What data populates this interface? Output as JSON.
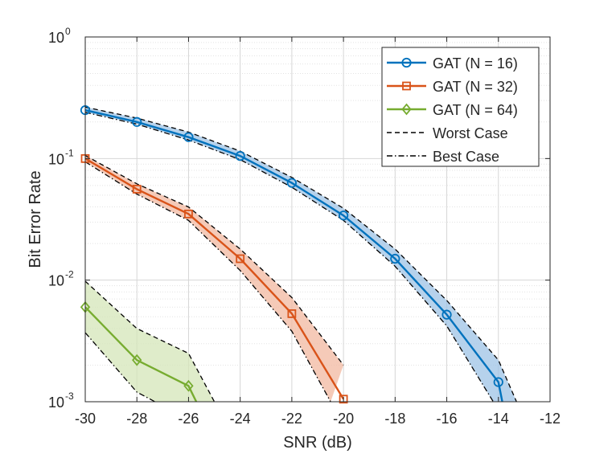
{
  "chart_data": {
    "type": "line",
    "xlabel": "SNR (dB)",
    "ylabel": "Bit Error Rate",
    "xlim": [
      -30,
      -12
    ],
    "ylim": [
      0.001,
      1
    ],
    "yscale": "log",
    "grid": true,
    "legend_position": "top-right",
    "x_ticks": [
      "-30",
      "-28",
      "-26",
      "-24",
      "-22",
      "-20",
      "-18",
      "-16",
      "-14",
      "-12"
    ],
    "y_ticks": [
      {
        "base": "10",
        "exp": "-3"
      },
      {
        "base": "10",
        "exp": "-2"
      },
      {
        "base": "10",
        "exp": "-1"
      },
      {
        "base": "10",
        "exp": "0"
      }
    ],
    "series": [
      {
        "name": "GAT (N = 16)",
        "color": "#0072BD",
        "fill": "#9DC3E6",
        "marker": "circle",
        "x": [
          -30,
          -28,
          -26,
          -24,
          -22,
          -20,
          -18,
          -16,
          -14,
          -13.85
        ],
        "y": [
          0.25,
          0.2,
          0.15,
          0.105,
          0.063,
          0.034,
          0.015,
          0.0052,
          0.00145,
          0.001
        ],
        "worst": {
          "x": [
            -30,
            -28,
            -26,
            -24,
            -22,
            -20,
            -18,
            -16,
            -14,
            -13.3
          ],
          "y": [
            0.265,
            0.215,
            0.165,
            0.115,
            0.07,
            0.039,
            0.018,
            0.0068,
            0.0022,
            0.001
          ]
        },
        "best": {
          "x": [
            -30,
            -28,
            -26,
            -24,
            -22,
            -20,
            -18,
            -16,
            -14.2
          ],
          "y": [
            0.24,
            0.192,
            0.142,
            0.098,
            0.058,
            0.031,
            0.013,
            0.0042,
            0.001
          ]
        }
      },
      {
        "name": "GAT (N = 32)",
        "color": "#D95319",
        "fill": "#F2B8A0",
        "marker": "square",
        "x": [
          -30,
          -28,
          -26,
          -24,
          -22,
          -20
        ],
        "y": [
          0.1,
          0.056,
          0.035,
          0.015,
          0.0053,
          0.00105
        ],
        "worst": {
          "x": [
            -30,
            -28,
            -26,
            -24,
            -22,
            -20
          ],
          "y": [
            0.106,
            0.062,
            0.04,
            0.018,
            0.0072,
            0.002
          ]
        },
        "best": {
          "x": [
            -30,
            -28,
            -26,
            -24,
            -22,
            -20.5
          ],
          "y": [
            0.094,
            0.051,
            0.031,
            0.012,
            0.0038,
            0.001
          ]
        }
      },
      {
        "name": "GAT (N = 64)",
        "color": "#77AC30",
        "fill": "#D4E6B8",
        "marker": "diamond",
        "x": [
          -30,
          -28,
          -26,
          -25.7
        ],
        "y": [
          0.006,
          0.0022,
          0.00135,
          0.001
        ],
        "worst": {
          "x": [
            -30,
            -28,
            -26,
            -25
          ],
          "y": [
            0.0098,
            0.004,
            0.0025,
            0.001
          ]
        },
        "best": {
          "x": [
            -30,
            -28,
            -27.3
          ],
          "y": [
            0.0037,
            0.0012,
            0.001
          ]
        }
      }
    ],
    "legend_extra": [
      "Worst Case",
      "Best Case"
    ]
  }
}
